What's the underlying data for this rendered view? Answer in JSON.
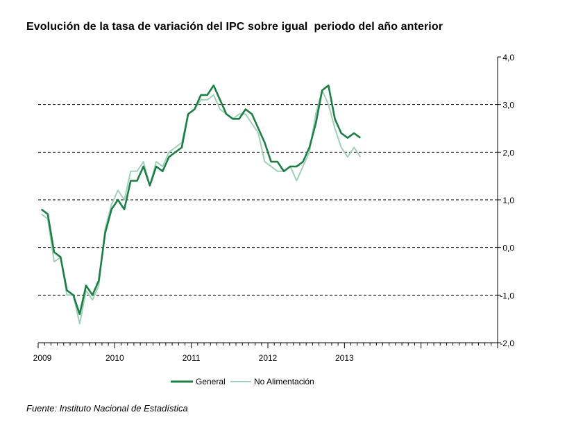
{
  "chart_data": {
    "type": "line",
    "title": "Evolución de la tasa de variación del IPC sobre igual  periodo del año anterior",
    "source": "Fuente: Instituto Nacional de Estadística",
    "ylim": [
      -2.0,
      4.0
    ],
    "yticks": [
      "4,0",
      "3,0",
      "2,0",
      "1,0",
      "0,0",
      "-1,0",
      "-2,0"
    ],
    "ytick_values": [
      4,
      3,
      2,
      1,
      0,
      -1,
      -2
    ],
    "grid": "dashed horizontal at 3,0 / 2,0 / 1,0 / 0,0 / -1,0",
    "grid_values": [
      3,
      2,
      1,
      0,
      -1
    ],
    "year_labels": [
      "2009",
      "2010",
      "2011",
      "2012",
      "2013"
    ],
    "legend_position": "bottom-center",
    "x_months": 72,
    "series": [
      {
        "name": "General",
        "color": "#1b7f45",
        "values": [
          0.8,
          0.7,
          -0.1,
          -0.2,
          -0.9,
          -1.0,
          -1.4,
          -0.8,
          -1.0,
          -0.7,
          0.3,
          0.8,
          1.0,
          0.8,
          1.4,
          1.4,
          1.7,
          1.3,
          1.7,
          1.6,
          1.9,
          2.0,
          2.1,
          2.8,
          2.9,
          3.2,
          3.2,
          3.4,
          3.1,
          2.8,
          2.7,
          2.7,
          2.9,
          2.8,
          2.5,
          2.2,
          1.8,
          1.8,
          1.6,
          1.7,
          1.7,
          1.8,
          2.1,
          2.6,
          3.3,
          3.4,
          2.7,
          2.4,
          2.3,
          2.4,
          2.3
        ]
      },
      {
        "name": "No Alimentación",
        "color": "#9ed1b5",
        "values": [
          0.7,
          0.6,
          -0.3,
          -0.2,
          -1.0,
          -1.0,
          -1.6,
          -0.9,
          -1.1,
          -0.8,
          0.4,
          0.9,
          1.2,
          1.0,
          1.6,
          1.6,
          1.8,
          1.3,
          1.8,
          1.7,
          2.0,
          2.1,
          2.2,
          2.8,
          2.9,
          3.1,
          3.1,
          3.2,
          2.9,
          2.8,
          2.7,
          2.8,
          2.8,
          2.6,
          2.4,
          1.8,
          1.7,
          1.6,
          1.6,
          1.7,
          1.4,
          1.7,
          2.0,
          2.8,
          3.3,
          3.0,
          2.5,
          2.1,
          1.9,
          2.1,
          1.9
        ]
      }
    ]
  }
}
